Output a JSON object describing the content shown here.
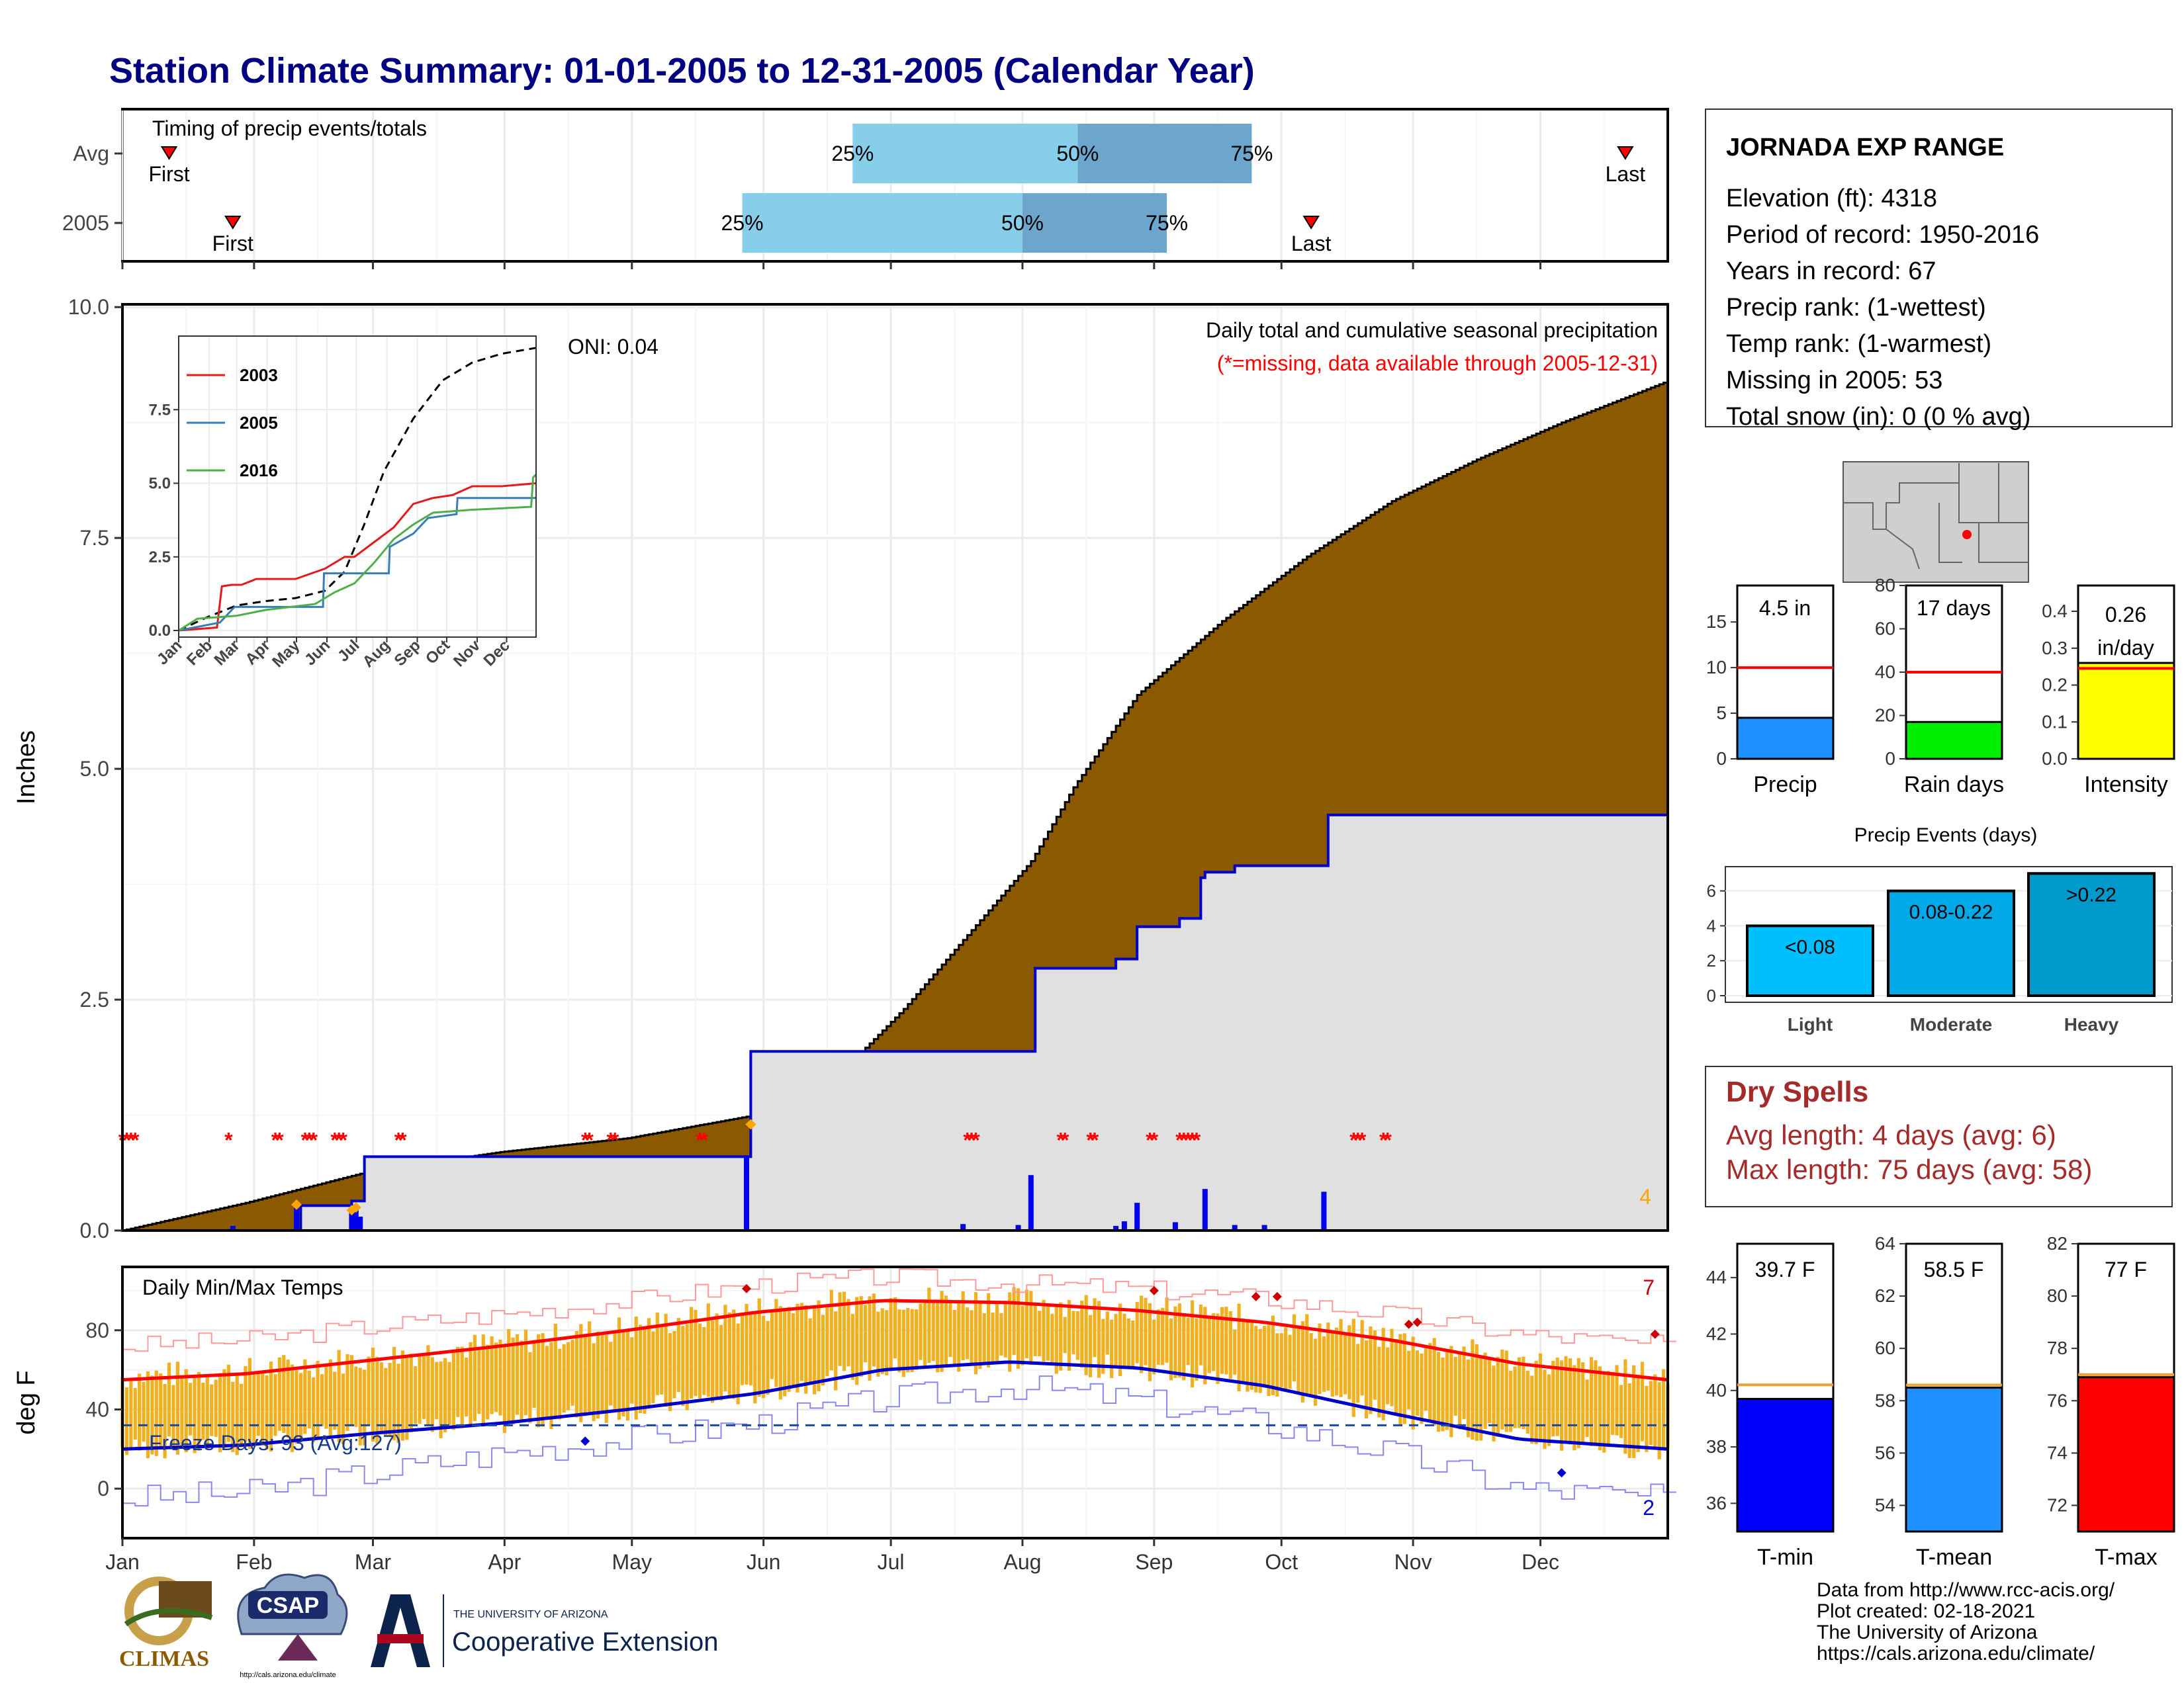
{
  "page": {
    "title": "Station Climate Summary: 01-01-2005 to 12-31-2005 (Calendar Year)"
  },
  "station_box": {
    "name": "JORNADA EXP RANGE",
    "lines": [
      "Elevation (ft): 4318",
      "Period of record: 1950-2016",
      "Years in record: 67",
      "Precip rank:  (1-wettest)",
      "Temp rank:  (1-warmest)",
      "Missing in 2005: 53",
      "Total snow (in): 0 (0 % avg)"
    ]
  },
  "colors": {
    "title": "#000080",
    "precip_fill": "#8b5a00",
    "precip_excess": "#008000",
    "avg_fill": "#e0e0e0",
    "avg_line": "#0000cc",
    "daily_bar": "#0000ee",
    "missing_marker": "#ff0000",
    "temp_bar": "#f0b020",
    "tmax_line": "#ff0000",
    "tmin_line": "#0000cc",
    "q_light": "#87ceeb",
    "q_dark": "#6ca6cd"
  },
  "months": [
    "Jan",
    "Feb",
    "Mar",
    "Apr",
    "May",
    "Jun",
    "Jul",
    "Aug",
    "Sep",
    "Oct",
    "Nov",
    "Dec"
  ],
  "timing_panel": {
    "title": "Timing of precip events/totals",
    "rows": [
      {
        "label": "Avg",
        "first_label": "First",
        "last_label": "Last",
        "first_doy": 12,
        "last_doy": 355,
        "q25_doy": 173,
        "q50_doy": 226,
        "q75_doy": 267,
        "q25_label": "25%",
        "q50_label": "50%",
        "q75_label": "75%"
      },
      {
        "label": "2005",
        "first_label": "First",
        "last_label": "Last",
        "first_doy": 27,
        "last_doy": 281,
        "q25_doy": 147,
        "q50_doy": 213,
        "q75_doy": 247,
        "q25_label": "25%",
        "q50_label": "50%",
        "q75_label": "75%"
      }
    ]
  },
  "precip_panel": {
    "title": "Daily total and cumulative seasonal precipitation",
    "subtitle": "(*=missing, data available through 2005-12-31)",
    "ylabel": "Inches",
    "oni": "ONI: 0.04",
    "corner_count": "4",
    "yticks": [
      "0.0",
      "2.5",
      "5.0",
      "7.5",
      "10.0"
    ],
    "ytick_values": [
      0,
      2.5,
      5,
      7.5,
      10
    ],
    "ylim": [
      0,
      10
    ],
    "missing_doy": [
      1,
      2,
      3,
      4,
      26,
      37,
      38,
      44,
      45,
      46,
      51,
      52,
      53,
      66,
      67,
      110,
      111,
      116,
      117,
      137,
      138,
      200,
      201,
      202,
      222,
      223,
      229,
      230,
      243,
      244,
      250,
      251,
      252,
      253,
      254,
      291,
      292,
      293,
      298,
      299
    ],
    "daily_events": [
      {
        "doy": 27,
        "inches": 0.05
      },
      {
        "doy": 42,
        "inches": 0.3
      },
      {
        "doy": 55,
        "inches": 0.2
      },
      {
        "doy": 56,
        "inches": 0.25
      },
      {
        "doy": 57,
        "inches": 0.15
      },
      {
        "doy": 148,
        "inches": 0.8
      },
      {
        "doy": 148,
        "inches": 0.6
      },
      {
        "doy": 199,
        "inches": 0.07
      },
      {
        "doy": 212,
        "inches": 0.06
      },
      {
        "doy": 215,
        "inches": 0.6
      },
      {
        "doy": 235,
        "inches": 0.05
      },
      {
        "doy": 237,
        "inches": 0.1
      },
      {
        "doy": 240,
        "inches": 0.3
      },
      {
        "doy": 249,
        "inches": 0.09
      },
      {
        "doy": 256,
        "inches": 0.45
      },
      {
        "doy": 263,
        "inches": 0.06
      },
      {
        "doy": 270,
        "inches": 0.06
      },
      {
        "doy": 284,
        "inches": 0.42
      }
    ],
    "cum_2005": [
      [
        1,
        0
      ],
      [
        43,
        0.27
      ],
      [
        55,
        0.32
      ],
      [
        58,
        0.8
      ],
      [
        148,
        0.8
      ],
      [
        149,
        1.94
      ],
      [
        215,
        1.94
      ],
      [
        216,
        2.84
      ],
      [
        234,
        2.84
      ],
      [
        235,
        2.94
      ],
      [
        240,
        3.29
      ],
      [
        250,
        3.38
      ],
      [
        255,
        3.82
      ],
      [
        256,
        3.88
      ],
      [
        263,
        3.95
      ],
      [
        284,
        3.95
      ],
      [
        285,
        4.5
      ],
      [
        365,
        4.5
      ]
    ],
    "cum_avg": [
      [
        1,
        0
      ],
      [
        30,
        0.3
      ],
      [
        60,
        0.65
      ],
      [
        90,
        0.85
      ],
      [
        120,
        1.0
      ],
      [
        150,
        1.25
      ],
      [
        170,
        1.7
      ],
      [
        185,
        2.4
      ],
      [
        200,
        3.2
      ],
      [
        215,
        4.0
      ],
      [
        225,
        4.8
      ],
      [
        240,
        5.8
      ],
      [
        260,
        6.6
      ],
      [
        280,
        7.3
      ],
      [
        300,
        7.9
      ],
      [
        320,
        8.35
      ],
      [
        340,
        8.75
      ],
      [
        365,
        9.2
      ]
    ],
    "diamonds": [
      [
        42,
        0.28
      ],
      [
        55,
        0.22
      ],
      [
        56,
        0.25
      ],
      [
        149,
        1.15
      ]
    ]
  },
  "inset": {
    "yticks": [
      "0.0",
      "2.5",
      "5.0",
      "7.5"
    ],
    "ytick_values": [
      0,
      2.5,
      5,
      7.5
    ],
    "legend": [
      {
        "name": "2003",
        "color": "#e41a1c"
      },
      {
        "name": "2005",
        "color": "#377eb8"
      },
      {
        "name": "2016",
        "color": "#4daf4a"
      }
    ],
    "avg": [
      [
        1,
        0
      ],
      [
        30,
        0.45
      ],
      [
        60,
        0.85
      ],
      [
        90,
        1.0
      ],
      [
        120,
        1.1
      ],
      [
        150,
        1.35
      ],
      [
        170,
        2.0
      ],
      [
        190,
        3.6
      ],
      [
        210,
        5.4
      ],
      [
        240,
        7.2
      ],
      [
        270,
        8.5
      ],
      [
        300,
        9.1
      ],
      [
        330,
        9.4
      ],
      [
        365,
        9.6
      ]
    ],
    "s2003": [
      [
        1,
        0
      ],
      [
        40,
        0.1
      ],
      [
        45,
        1.5
      ],
      [
        55,
        1.55
      ],
      [
        65,
        1.55
      ],
      [
        80,
        1.75
      ],
      [
        120,
        1.75
      ],
      [
        150,
        2.1
      ],
      [
        170,
        2.5
      ],
      [
        180,
        2.5
      ],
      [
        200,
        3.0
      ],
      [
        220,
        3.5
      ],
      [
        240,
        4.3
      ],
      [
        260,
        4.5
      ],
      [
        280,
        4.6
      ],
      [
        300,
        4.9
      ],
      [
        330,
        4.9
      ],
      [
        365,
        5.0
      ]
    ],
    "s2005": [
      [
        1,
        0
      ],
      [
        43,
        0.27
      ],
      [
        58,
        0.8
      ],
      [
        148,
        0.8
      ],
      [
        149,
        1.94
      ],
      [
        215,
        1.94
      ],
      [
        216,
        2.84
      ],
      [
        240,
        3.29
      ],
      [
        255,
        3.82
      ],
      [
        284,
        3.95
      ],
      [
        285,
        4.5
      ],
      [
        365,
        4.5
      ]
    ],
    "s2016": [
      [
        1,
        0
      ],
      [
        20,
        0.4
      ],
      [
        60,
        0.5
      ],
      [
        90,
        0.7
      ],
      [
        140,
        0.9
      ],
      [
        160,
        1.3
      ],
      [
        180,
        1.6
      ],
      [
        200,
        2.3
      ],
      [
        220,
        3.1
      ],
      [
        240,
        3.6
      ],
      [
        260,
        4.0
      ],
      [
        300,
        4.1
      ],
      [
        360,
        4.2
      ],
      [
        362,
        5.2
      ],
      [
        365,
        5.3
      ]
    ]
  },
  "temp_panel": {
    "title": "Daily Min/Max Temps",
    "ylabel": "deg F",
    "freeze_label": "Freeze Days: 93 (Avg:127)",
    "freeze_line": 32,
    "max_count": "7",
    "min_count": "2",
    "yticks": [
      "0",
      "40",
      "80"
    ],
    "ytick_values": [
      0,
      40,
      80
    ],
    "ylim": [
      -25,
      112
    ],
    "tmax_avg": [
      [
        1,
        55
      ],
      [
        30,
        58
      ],
      [
        60,
        65
      ],
      [
        90,
        72
      ],
      [
        120,
        80
      ],
      [
        150,
        89
      ],
      [
        180,
        95
      ],
      [
        210,
        94
      ],
      [
        240,
        90
      ],
      [
        270,
        84
      ],
      [
        300,
        75
      ],
      [
        330,
        63
      ],
      [
        365,
        55
      ]
    ],
    "tmin_avg": [
      [
        1,
        20
      ],
      [
        30,
        22
      ],
      [
        60,
        28
      ],
      [
        90,
        33
      ],
      [
        120,
        40
      ],
      [
        150,
        48
      ],
      [
        180,
        60
      ],
      [
        210,
        64
      ],
      [
        240,
        61
      ],
      [
        270,
        52
      ],
      [
        300,
        38
      ],
      [
        330,
        25
      ],
      [
        365,
        20
      ]
    ],
    "tmax_rec": [
      [
        1,
        72
      ],
      [
        30,
        75
      ],
      [
        60,
        82
      ],
      [
        90,
        88
      ],
      [
        120,
        95
      ],
      [
        150,
        103
      ],
      [
        180,
        107
      ],
      [
        210,
        104
      ],
      [
        240,
        101
      ],
      [
        270,
        96
      ],
      [
        300,
        88
      ],
      [
        330,
        78
      ],
      [
        365,
        72
      ]
    ],
    "tmin_rec": [
      [
        1,
        -5
      ],
      [
        30,
        -2
      ],
      [
        60,
        8
      ],
      [
        90,
        18
      ],
      [
        120,
        25
      ],
      [
        150,
        33
      ],
      [
        180,
        45
      ],
      [
        210,
        52
      ],
      [
        240,
        45
      ],
      [
        270,
        33
      ],
      [
        300,
        18
      ],
      [
        330,
        0
      ],
      [
        365,
        -5
      ]
    ]
  },
  "us_map": {
    "label": "station location"
  },
  "bars_precip": [
    {
      "label": "Precip",
      "value_label": "4.5 in",
      "value": 4.5,
      "avg": 10,
      "ymax": 19,
      "ticks": [
        0,
        5,
        10,
        15
      ],
      "color": "#1e90ff"
    },
    {
      "label": "Rain days",
      "value_label": "17 days",
      "value": 17,
      "avg": 40,
      "ymax": 80,
      "ticks": [
        0,
        20,
        40,
        60,
        80
      ],
      "color": "#00ee00"
    },
    {
      "label": "Intensity",
      "value_label": "0.26\nin/day",
      "value_line1": "0.26",
      "value_line2": "in/day",
      "value": 0.26,
      "avg": 0.245,
      "ymax": 0.47,
      "ticks": [
        0.0,
        0.1,
        0.2,
        0.3,
        0.4
      ],
      "tick_labels": [
        "0.0",
        "0.1",
        "0.2",
        "0.3",
        "0.4"
      ],
      "color": "#ffff00"
    }
  ],
  "precip_events": {
    "title": "Precip Events (days)",
    "yticks": [
      "0",
      "2",
      "4",
      "6"
    ],
    "ytick_values": [
      0,
      2,
      4,
      6
    ],
    "ymax": 7.2,
    "bars": [
      {
        "label": "Light",
        "value": 4,
        "value_label": "<0.08",
        "color": "#00bfff"
      },
      {
        "label": "Moderate",
        "value": 6,
        "value_label": "0.08-0.22",
        "color": "#00a9e8"
      },
      {
        "label": "Heavy",
        "value": 7,
        "value_label": ">0.22",
        "color": "#0099cc"
      }
    ]
  },
  "dry_spells": {
    "title": "Dry Spells",
    "avg_line": "Avg length: 4 days (avg: 6)",
    "max_line": "Max length: 75 days (avg: 58)"
  },
  "bars_temp": [
    {
      "label": "T-min",
      "value_label": "39.7 F",
      "value": 39.7,
      "avg": 40.2,
      "ymin": 35,
      "ymax": 45.2,
      "ticks": [
        36,
        38,
        40,
        42,
        44
      ],
      "color": "#0000ff"
    },
    {
      "label": "T-mean",
      "value_label": "58.5 F",
      "value": 58.5,
      "avg": 58.6,
      "ymin": 53,
      "ymax": 64,
      "ticks": [
        54,
        56,
        58,
        60,
        62,
        64
      ],
      "color": "#1e90ff"
    },
    {
      "label": "T-max",
      "value_label": "77 F",
      "value": 76.9,
      "avg": 77.0,
      "ymin": 71,
      "ymax": 82,
      "ticks": [
        72,
        74,
        76,
        78,
        80,
        82
      ],
      "color": "#ff0000"
    }
  ],
  "logos": {
    "climas": "CLIMAS",
    "csap": "CSAP",
    "csap_url": "http://cals.arizona.edu/climate",
    "ua_small": "THE UNIVERSITY OF ARIZONA",
    "ua_big": "Cooperative Extension"
  },
  "footer": {
    "lines": [
      "Data from http://www.rcc-acis.org/",
      "Plot created: 02-18-2021",
      "The University of Arizona",
      "https://cals.arizona.edu/climate/"
    ]
  }
}
